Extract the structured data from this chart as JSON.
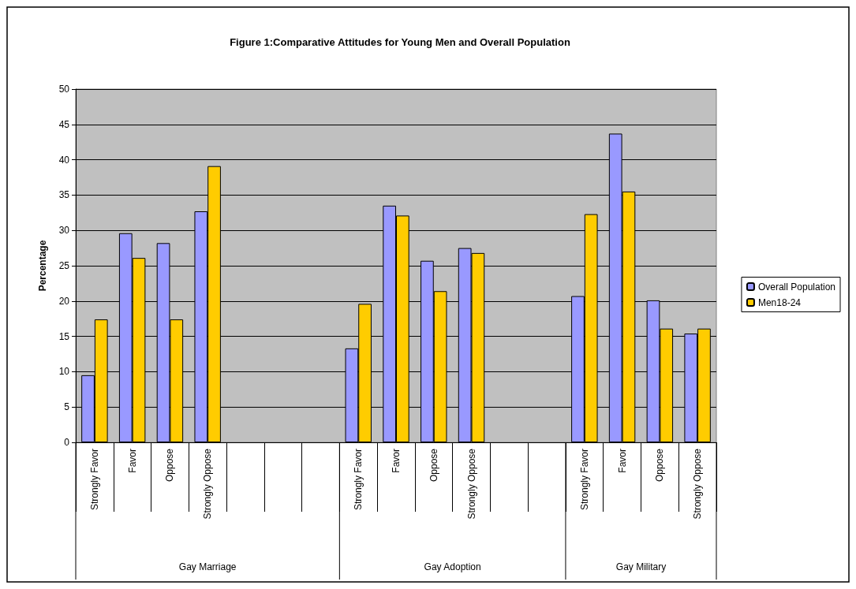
{
  "chart_data": {
    "type": "bar",
    "title": "Figure 1:Comparative Attitudes for Young Men and Overall Population",
    "ylabel": "Percentage",
    "categories": [
      "Strongly Favor",
      "Favor",
      "Oppose",
      "Strongly Oppose",
      null,
      null,
      null,
      "Strongly Favor",
      "Favor",
      "Oppose",
      "Strongly Oppose",
      null,
      null,
      "Strongly Favor",
      "Favor",
      "Oppose",
      "Strongly Oppose"
    ],
    "series": [
      {
        "name": "Overall Population",
        "color": "#9999ff",
        "values": [
          9.5,
          29.6,
          28.2,
          32.7,
          null,
          null,
          null,
          13.3,
          33.5,
          25.7,
          27.5,
          null,
          null,
          20.7,
          43.7,
          20.1,
          15.4
        ]
      },
      {
        "name": "Men18-24",
        "color": "#ffcc00",
        "values": [
          17.4,
          26.1,
          17.4,
          39.1,
          null,
          null,
          null,
          19.6,
          32.1,
          21.4,
          26.8,
          null,
          null,
          32.3,
          35.5,
          16.1,
          16.1
        ]
      }
    ],
    "annotations": [
      "Gay Marriage",
      "Gay Adoption",
      "Gay Military"
    ],
    "ylim": [
      0,
      50
    ],
    "yticks": [
      0,
      5,
      10,
      15,
      20,
      25,
      30,
      35,
      40,
      45,
      50
    ],
    "grid": "y",
    "legend": "right"
  }
}
